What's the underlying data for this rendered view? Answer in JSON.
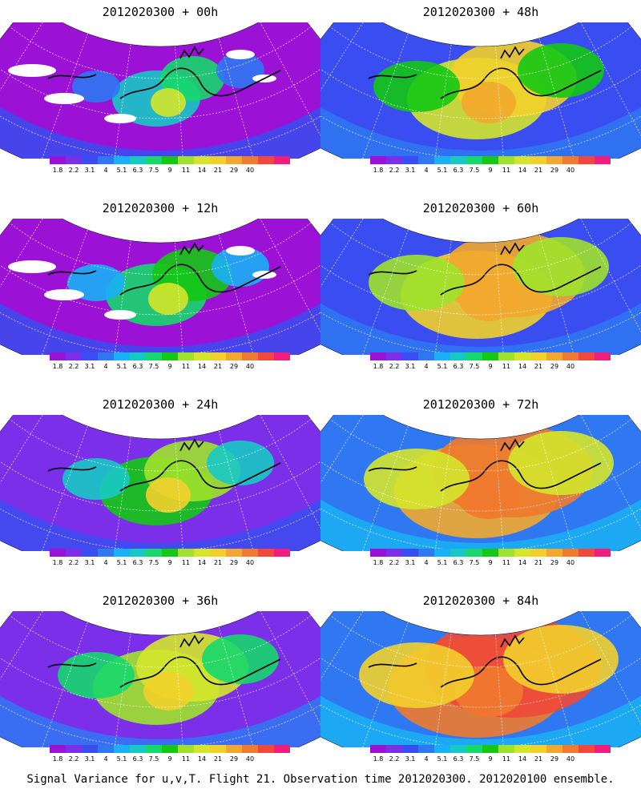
{
  "panels": [
    {
      "title": "2012020300 + 00h",
      "intensity": 0
    },
    {
      "title": "2012020300 + 48h",
      "intensity": 4
    },
    {
      "title": "2012020300 + 12h",
      "intensity": 1
    },
    {
      "title": "2012020300 + 60h",
      "intensity": 5
    },
    {
      "title": "2012020300 + 24h",
      "intensity": 2
    },
    {
      "title": "2012020300 + 72h",
      "intensity": 6
    },
    {
      "title": "2012020300 + 36h",
      "intensity": 3
    },
    {
      "title": "2012020300 + 84h",
      "intensity": 7
    }
  ],
  "colorbar": {
    "labels": [
      "1.8",
      "2.2",
      "3.1",
      "4",
      "5.1",
      "6.3",
      "7.5",
      "9",
      "11",
      "14",
      "21",
      "29",
      "40"
    ],
    "colors": [
      "#9b11d6",
      "#7b2fe8",
      "#3a4df0",
      "#2f78f2",
      "#1ab0f5",
      "#17c9c4",
      "#16d86b",
      "#14c814",
      "#9fe22b",
      "#d4e52b",
      "#f2d02b",
      "#f2a82e",
      "#f07a2e",
      "#f0483a",
      "#f21c7a"
    ]
  },
  "caption": "Signal Variance for u,v,T. Flight 21. Observation time 2012020300. 2012020100 ensemble."
}
